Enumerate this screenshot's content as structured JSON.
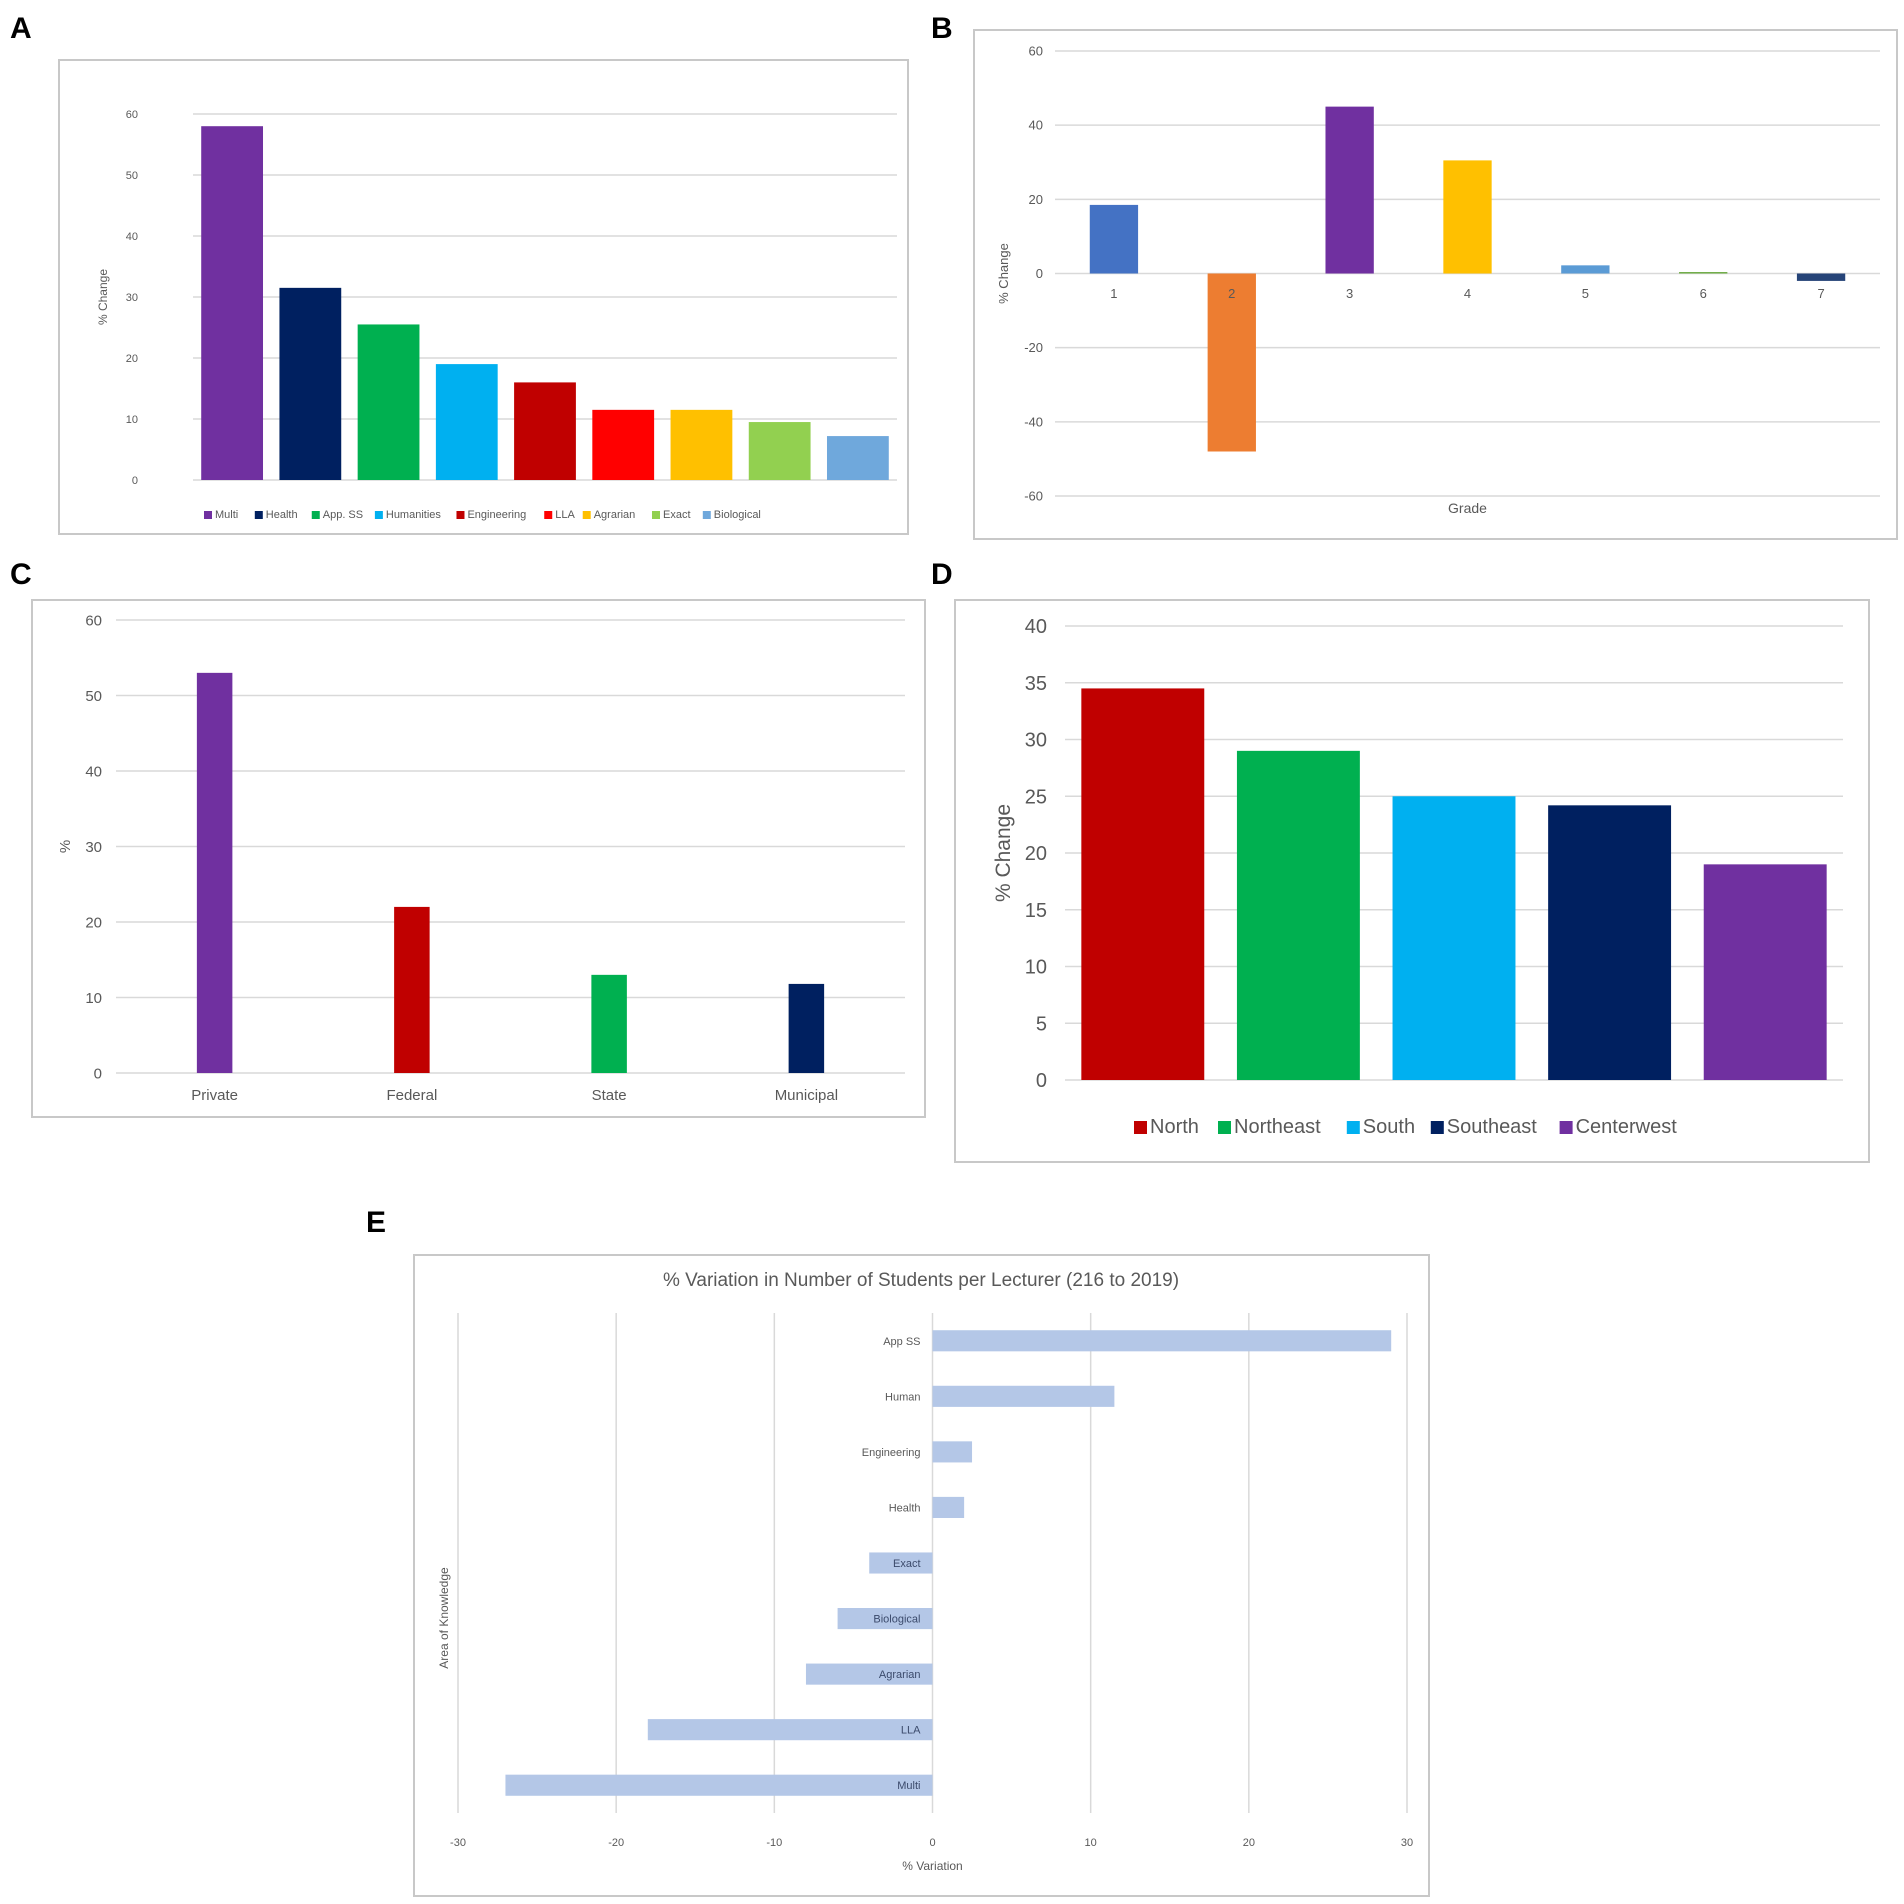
{
  "panels": [
    "A",
    "B",
    "C",
    "D",
    "E"
  ],
  "chart_data": [
    {
      "id": "A",
      "type": "bar",
      "categories": [
        "Multi",
        "Health",
        "App. SS",
        "Humanities",
        "Engineering",
        "LLA",
        "Agrarian",
        "Exact",
        "Biological"
      ],
      "values": [
        58,
        31.5,
        25.5,
        19,
        16,
        11.5,
        11.5,
        9.5,
        7.2
      ],
      "colors": [
        "#7030a0",
        "#002060",
        "#00b050",
        "#00b0f0",
        "#c00000",
        "#ff0000",
        "#ffc000",
        "#92d050",
        "#6fa8dc"
      ],
      "ylabel": "% Change",
      "xlabel": "",
      "ylim": [
        0,
        60
      ],
      "yticks": [
        0,
        10,
        20,
        30,
        40,
        50,
        60
      ],
      "legend": "bottom",
      "grid": true
    },
    {
      "id": "B",
      "type": "bar",
      "categories": [
        "1",
        "2",
        "3",
        "4",
        "5",
        "6",
        "7"
      ],
      "values": [
        18.5,
        -48,
        45,
        30.5,
        2.2,
        0.4,
        -2
      ],
      "colors": [
        "#4472c4",
        "#ed7d31",
        "#7030a0",
        "#ffc000",
        "#5b9bd5",
        "#70ad47",
        "#264478"
      ],
      "ylabel": "% Change",
      "xlabel": "Grade",
      "ylim": [
        -60,
        60
      ],
      "yticks": [
        -60,
        -40,
        -20,
        0,
        20,
        40,
        60
      ],
      "grid": true
    },
    {
      "id": "C",
      "type": "bar",
      "categories": [
        "Private",
        "Federal",
        "State",
        "Municipal"
      ],
      "values": [
        53,
        22,
        13,
        11.8
      ],
      "colors": [
        "#7030a0",
        "#c00000",
        "#00b050",
        "#002060"
      ],
      "ylabel": "%",
      "xlabel": "",
      "ylim": [
        0,
        60
      ],
      "yticks": [
        0,
        10,
        20,
        30,
        40,
        50,
        60
      ],
      "grid": true
    },
    {
      "id": "D",
      "type": "bar",
      "categories": [
        "North",
        "Northeast",
        "South",
        "Southeast",
        "Centerwest"
      ],
      "values": [
        34.5,
        29,
        25,
        24.2,
        19
      ],
      "colors": [
        "#c00000",
        "#00b050",
        "#00b0f0",
        "#002060",
        "#7030a0"
      ],
      "ylabel": "% Change",
      "xlabel": "",
      "ylim": [
        0,
        40
      ],
      "yticks": [
        0,
        5,
        10,
        15,
        20,
        25,
        30,
        35,
        40
      ],
      "legend": "bottom",
      "grid": true
    },
    {
      "id": "E",
      "type": "bar",
      "orientation": "horizontal",
      "title": "% Variation in Number of Students per Lecturer (216 to 2019)",
      "categories": [
        "App SS",
        "Human",
        "Engineering",
        "Health",
        "Exact",
        "Biological",
        "Agrarian",
        "LLA",
        "Multi"
      ],
      "values": [
        29,
        11.5,
        2.5,
        2,
        -4,
        -6,
        -8,
        -18,
        -27
      ],
      "color": "#b4c7e7",
      "xlabel": "% Variation",
      "ylabel": "Area of Knowledge",
      "xlim": [
        -30,
        30
      ],
      "xticks": [
        -30,
        -20,
        -10,
        0,
        10,
        20,
        30
      ],
      "grid": true
    }
  ]
}
